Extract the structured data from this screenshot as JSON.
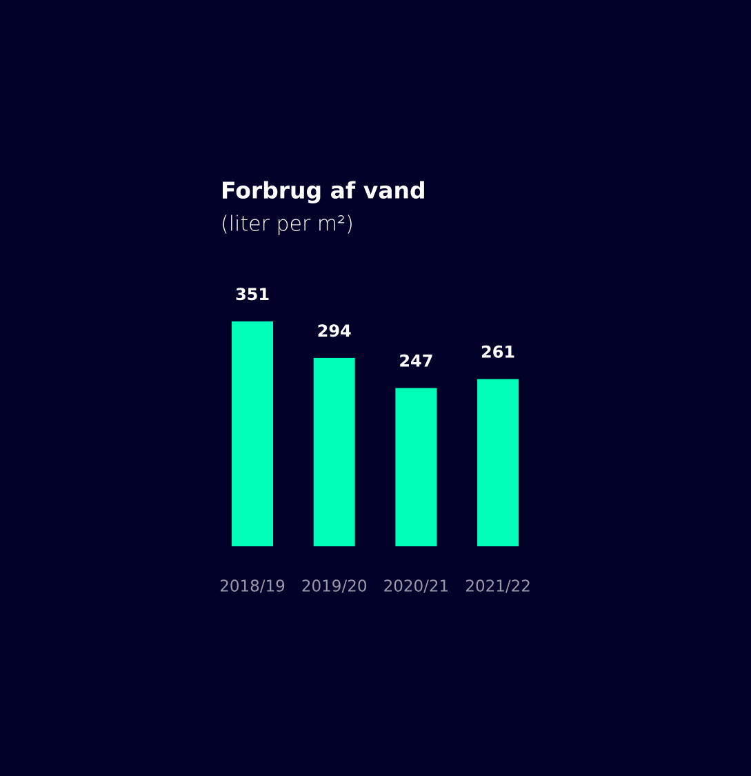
{
  "chart_data": {
    "type": "bar",
    "title": "Forbrug af vand",
    "subtitle": "(liter per m²)",
    "categories": [
      "2018/19",
      "2019/20",
      "2020/21",
      "2021/22"
    ],
    "values": [
      351,
      294,
      247,
      261
    ],
    "color": "#00ffb9"
  }
}
